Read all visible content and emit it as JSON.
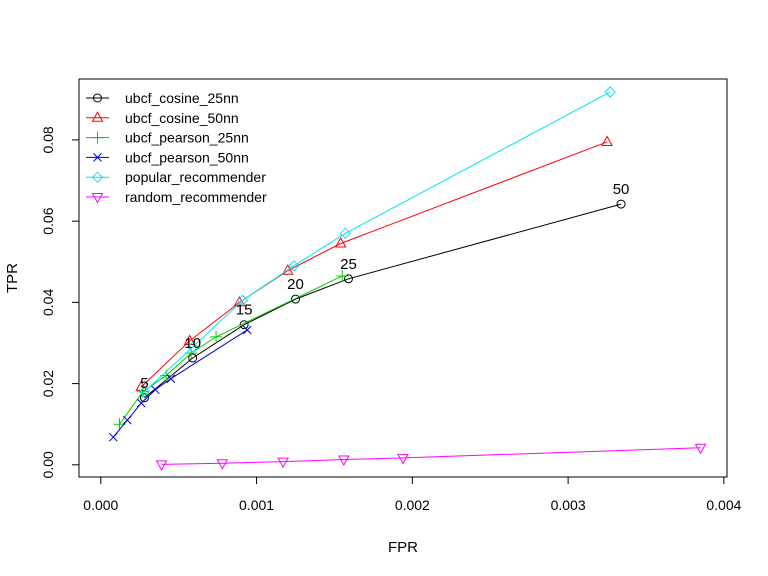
{
  "chart_data": {
    "type": "line",
    "title": "",
    "xlabel": "FPR",
    "ylabel": "TPR",
    "xlim": [
      0,
      0.004
    ],
    "ylim": [
      -0.003,
      0.095
    ],
    "x_ticks": [
      0,
      0.001,
      0.002,
      0.003,
      0.004
    ],
    "x_tick_labels": [
      "0.000",
      "0.001",
      "0.002",
      "0.003",
      "0.004"
    ],
    "y_ticks": [
      0,
      0.02,
      0.04,
      0.06,
      0.08
    ],
    "y_tick_labels": [
      "0.00",
      "0.02",
      "0.04",
      "0.06",
      "0.08"
    ],
    "legend_position": "top-left",
    "series": [
      {
        "name": "ubcf_cosine_25nn",
        "color": "#000000",
        "marker": "circle",
        "x": [
          0.00028,
          0.00059,
          0.00092,
          0.00125,
          0.00159,
          0.00334
        ],
        "y": [
          0.0165,
          0.0263,
          0.0345,
          0.0408,
          0.0458,
          0.0642
        ]
      },
      {
        "name": "ubcf_cosine_50nn",
        "color": "#ff0000",
        "marker": "triangle-up",
        "x": [
          0.00026,
          0.00057,
          0.00089,
          0.0012,
          0.00154,
          0.00325
        ],
        "y": [
          0.0192,
          0.0305,
          0.04,
          0.0478,
          0.0545,
          0.0795
        ]
      },
      {
        "name": "ubcf_pearson_25nn",
        "color": "#00cd00",
        "marker": "plus",
        "x": [
          0.00012,
          0.00027,
          0.00042,
          0.00058,
          0.00074,
          0.00155
        ],
        "y": [
          0.01,
          0.018,
          0.022,
          0.0275,
          0.0315,
          0.0465
        ]
      },
      {
        "name": "ubcf_pearson_50nn",
        "color": "#0000cd",
        "marker": "cross",
        "x": [
          8e-05,
          0.00017,
          0.00026,
          0.00035,
          0.00045,
          0.00094
        ],
        "y": [
          0.0068,
          0.011,
          0.0152,
          0.0185,
          0.0212,
          0.0332
        ]
      },
      {
        "name": "popular_recommender",
        "color": "#00e5ee",
        "marker": "diamond",
        "x": [
          0.00028,
          0.00059,
          0.00091,
          0.00124,
          0.00157,
          0.00327
        ],
        "y": [
          0.018,
          0.029,
          0.0405,
          0.049,
          0.057,
          0.0918
        ]
      },
      {
        "name": "random_recommender",
        "color": "#ff00ff",
        "marker": "triangle-down",
        "x": [
          0.00039,
          0.00078,
          0.00117,
          0.00156,
          0.00194,
          0.00385
        ],
        "y": [
          0.0001,
          0.0004,
          0.0008,
          0.0013,
          0.0017,
          0.0042
        ]
      }
    ],
    "annotations": [
      {
        "text": "5",
        "x": 0.00028,
        "y": 0.0165
      },
      {
        "text": "10",
        "x": 0.00059,
        "y": 0.0263
      },
      {
        "text": "15",
        "x": 0.00092,
        "y": 0.0345
      },
      {
        "text": "20",
        "x": 0.00125,
        "y": 0.0408
      },
      {
        "text": "25",
        "x": 0.00159,
        "y": 0.0458
      },
      {
        "text": "50",
        "x": 0.00334,
        "y": 0.0642
      }
    ]
  }
}
